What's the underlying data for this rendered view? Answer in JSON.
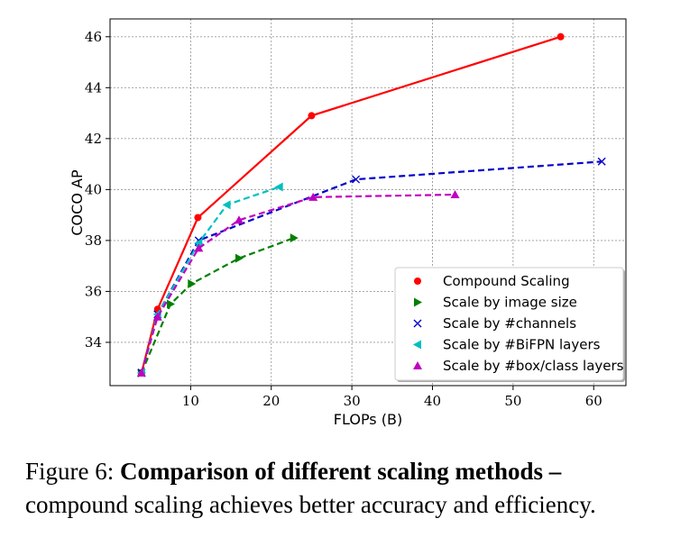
{
  "caption": {
    "prefix": "Figure 6:",
    "bold": "Comparison of different scaling methods –",
    "rest": "compound scaling achieves better accuracy and efficiency."
  },
  "chart_data": {
    "type": "line",
    "xlabel": "FLOPs (B)",
    "ylabel": "COCO AP",
    "xlim": [
      0,
      64
    ],
    "ylim": [
      32.3,
      46.7
    ],
    "xticks": [
      10,
      20,
      30,
      40,
      50,
      60
    ],
    "yticks": [
      34,
      36,
      38,
      40,
      42,
      44,
      46
    ],
    "grid": true,
    "legend_position": "lower-right",
    "series": [
      {
        "name": "Compound Scaling",
        "color": "#ff0000",
        "marker": "circle",
        "dash": "solid",
        "x": [
          3.9,
          5.9,
          10.9,
          25.0,
          55.9
        ],
        "y": [
          32.8,
          35.3,
          38.9,
          42.9,
          46.0
        ]
      },
      {
        "name": "Scale by image size",
        "color": "#008000",
        "marker": "triangle-right",
        "dash": "dashed",
        "x": [
          3.9,
          7.5,
          10.1,
          16.0,
          22.8
        ],
        "y": [
          32.8,
          35.5,
          36.3,
          37.3,
          38.1
        ]
      },
      {
        "name": "Scale by #channels",
        "color": "#0000cc",
        "marker": "x",
        "dash": "dashed",
        "x": [
          3.9,
          5.9,
          11.0,
          30.5,
          61.0
        ],
        "y": [
          32.8,
          35.1,
          38.0,
          40.4,
          41.1
        ]
      },
      {
        "name": "Scale by #BiFPN layers",
        "color": "#00bfbf",
        "marker": "triangle-left",
        "dash": "dashed",
        "x": [
          3.9,
          5.9,
          11.0,
          14.5,
          21.0
        ],
        "y": [
          32.8,
          35.1,
          37.9,
          39.4,
          40.1
        ]
      },
      {
        "name": "Scale by #box/class layers",
        "color": "#bf00bf",
        "marker": "triangle-up",
        "dash": "dashed",
        "x": [
          3.9,
          5.9,
          11.0,
          16.0,
          25.2,
          42.8
        ],
        "y": [
          32.8,
          35.0,
          37.7,
          38.8,
          39.7,
          39.8
        ]
      }
    ]
  }
}
